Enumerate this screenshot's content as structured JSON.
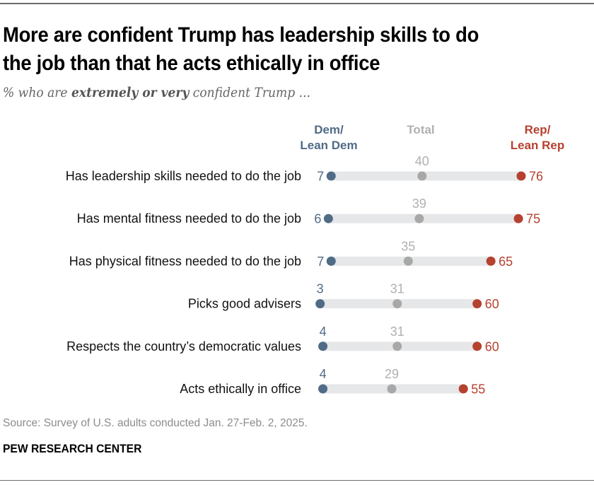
{
  "header": {
    "title_line1": "More are confident Trump has leadership skills to do",
    "title_line2": "the job than that he acts ethically in office",
    "subtitle_pre": "% who are ",
    "subtitle_bold": "extremely or very",
    "subtitle_post": " confident Trump ..."
  },
  "legend": {
    "dem_line1": "Dem/",
    "dem_line2": "Lean Dem",
    "total": "Total",
    "rep_line1": "Rep/",
    "rep_line2": "Lean Rep"
  },
  "colors": {
    "dem": "#4f6b86",
    "total": "#a8a8a8",
    "total_label": "#b0b0b0",
    "rep": "#b5412f",
    "track": "#e6e7e9"
  },
  "chart_data": {
    "type": "dot-range",
    "title": "More are confident Trump has leadership skills to do the job than that he acts ethically in office",
    "subtitle": "% who are extremely or very confident Trump ...",
    "xlim": [
      0,
      100
    ],
    "grid": false,
    "legend_position": "top",
    "categories": [
      "Has leadership skills needed to do the job",
      "Has mental fitness needed to do the job",
      "Has physical fitness needed to do the job",
      "Picks good advisers",
      "Respects the country’s democratic values",
      "Acts ethically in office"
    ],
    "series": [
      {
        "name": "Dem/Lean Dem",
        "values": [
          7,
          6,
          7,
          3,
          4,
          4
        ]
      },
      {
        "name": "Total",
        "values": [
          40,
          39,
          35,
          31,
          31,
          29
        ]
      },
      {
        "name": "Rep/Lean Rep",
        "values": [
          76,
          75,
          65,
          60,
          60,
          55
        ]
      }
    ]
  },
  "footer": {
    "source": "Source: Survey of U.S. adults conducted Jan. 27-Feb. 2, 2025.",
    "brand": "PEW RESEARCH CENTER"
  }
}
